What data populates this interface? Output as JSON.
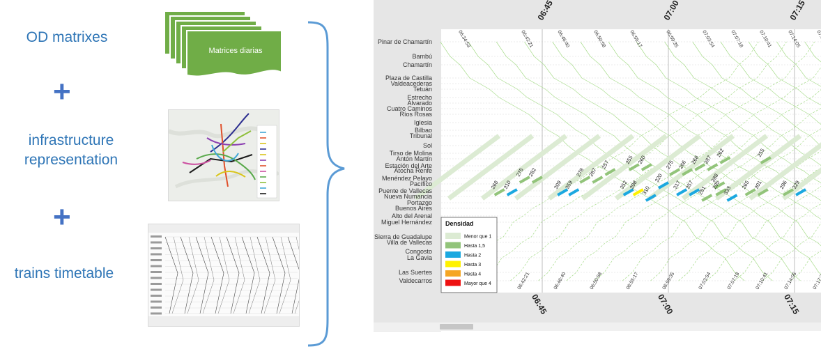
{
  "left": {
    "labels": [
      "OD matrixes",
      "infrastructure\nrepresentation",
      "trains timetable"
    ],
    "plus_symbol": "+",
    "doc_stack_label": "Matrices diarias"
  },
  "colors": {
    "accent_text": "#2E75B6",
    "plus": "#4472C4",
    "doc_green": "#70AD47",
    "brace": "#5B9BD5"
  },
  "chart": {
    "stations": [
      "Pinar de Chamartín",
      "Bambú",
      "Chamartín",
      "Plaza de Castilla",
      "Valdeacederas",
      "Tetuán",
      "Estrecho",
      "Alvarado",
      "Cuatro Caminos",
      "Ríos Rosas",
      "Iglesia",
      "Bilbao",
      "Tribunal",
      "Sol",
      "Tirso de Molina",
      "Antón Martín",
      "Estación del Arte",
      "Atocha Renfe",
      "Menéndez Pelayo",
      "Pacífico",
      "Puente de Vallecas",
      "Nueva Numancia",
      "Portazgo",
      "Buenos Aires",
      "Alto del Arenal",
      "Miguel Hernández",
      "Sierra de Guadalupe",
      "Villa de Vallecas",
      "Congosto",
      "La Gavia",
      "Las Suertes",
      "Valdecarros"
    ],
    "hour_labels": [
      "06:45",
      "07:00",
      "07:15"
    ],
    "time_labels": [
      "06:34:53",
      "06:42:21",
      "06:46:40",
      "06:50:58",
      "06:55:17",
      "06:59:35",
      "07:03:54",
      "07:07:18",
      "07:10:41",
      "07:14:05",
      "07:17:29"
    ],
    "bottom_time_labels": [
      "06:42:21",
      "06:46:40",
      "06:50:58",
      "06:55:17",
      "06:59:35",
      "07:03:54",
      "07:07:18",
      "07:10:41",
      "07:14:05",
      "07:17:29"
    ],
    "legend": {
      "title": "Densidad",
      "items": [
        {
          "label": "Menor que 1",
          "color": "#DCEBD3"
        },
        {
          "label": "Hasta 1,5",
          "color": "#92C47A"
        },
        {
          "label": "Hasta 2",
          "color": "#1BA8E0"
        },
        {
          "label": "Hasta 3",
          "color": "#FFF200"
        },
        {
          "label": "Hasta 4",
          "color": "#F5A623"
        },
        {
          "label": "Mayor que 4",
          "color": "#EE1111"
        }
      ]
    },
    "density_labels": [
      {
        "value": "268",
        "time": "06:39:30",
        "station": "Puente de Vallecas",
        "density": "Hasta 1,5"
      },
      {
        "value": "310",
        "time": "06:41:00",
        "station": "Puente de Vallecas",
        "density": "Hasta 2"
      },
      {
        "value": "275",
        "time": "06:42:30",
        "station": "Menéndez Pelayo",
        "density": "Hasta 1,5"
      },
      {
        "value": "282",
        "time": "06:44:00",
        "station": "Menéndez Pelayo",
        "density": "Hasta 1,5"
      },
      {
        "value": "309",
        "time": "06:47:00",
        "station": "Puente de Vallecas",
        "density": "Hasta 2"
      },
      {
        "value": "359",
        "time": "06:48:20",
        "station": "Puente de Vallecas",
        "density": "Hasta 2"
      },
      {
        "value": "278",
        "time": "06:49:40",
        "station": "Menéndez Pelayo",
        "density": "Hasta 1,5"
      },
      {
        "value": "287",
        "time": "06:51:10",
        "station": "Menéndez Pelayo",
        "density": "Hasta 1,5"
      },
      {
        "value": "257",
        "time": "06:52:40",
        "station": "Atocha Renfe",
        "density": "Hasta 1,5"
      },
      {
        "value": "352",
        "time": "06:54:50",
        "station": "Puente de Vallecas",
        "density": "Hasta 2"
      },
      {
        "value": "398",
        "time": "06:56:00",
        "station": "Puente de Vallecas",
        "density": "Hasta 3"
      },
      {
        "value": "310",
        "time": "06:57:30",
        "station": "Nueva Numancia",
        "density": "Hasta 2"
      },
      {
        "value": "320",
        "time": "06:59:00",
        "station": "Pacífico",
        "density": "Hasta 2"
      },
      {
        "value": "255",
        "time": "06:55:30",
        "station": "Estación del Arte",
        "density": "Hasta 1,5"
      },
      {
        "value": "260",
        "time": "06:57:00",
        "station": "Estación del Arte",
        "density": "Hasta 1,5"
      },
      {
        "value": "275",
        "time": "07:00:20",
        "station": "Atocha Renfe",
        "density": "Hasta 1,5"
      },
      {
        "value": "266",
        "time": "07:01:50",
        "station": "Atocha Renfe",
        "density": "Hasta 1,5"
      },
      {
        "value": "268",
        "time": "07:03:20",
        "station": "Estación del Arte",
        "density": "Hasta 1,5"
      },
      {
        "value": "287",
        "time": "07:04:50",
        "station": "Estación del Arte",
        "density": "Hasta 1,5"
      },
      {
        "value": "262",
        "time": "07:06:20",
        "station": "Antón Martín",
        "density": "Hasta 1,5"
      },
      {
        "value": "317",
        "time": "07:01:10",
        "station": "Puente de Vallecas",
        "density": "Hasta 2"
      },
      {
        "value": "357",
        "time": "07:02:40",
        "station": "Puente de Vallecas",
        "density": "Hasta 2"
      },
      {
        "value": "281",
        "time": "07:04:10",
        "station": "Nueva Numancia",
        "density": "Hasta 1,5"
      },
      {
        "value": "288",
        "time": "07:05:40",
        "station": "Pacífico",
        "density": "Hasta 1,5"
      },
      {
        "value": "295",
        "time": "07:05:50",
        "station": "Puente de Vallecas",
        "density": "Hasta 1,5"
      },
      {
        "value": "333",
        "time": "07:07:10",
        "station": "Nueva Numancia",
        "density": "Hasta 2"
      },
      {
        "value": "265",
        "time": "07:09:20",
        "station": "Puente de Vallecas",
        "density": "Hasta 1,5"
      },
      {
        "value": "301",
        "time": "07:10:50",
        "station": "Puente de Vallecas",
        "density": "Hasta 1,5"
      },
      {
        "value": "255",
        "time": "07:11:10",
        "station": "Antón Martín",
        "density": "Hasta 1,5"
      },
      {
        "value": "296",
        "time": "07:13:50",
        "station": "Puente de Vallecas",
        "density": "Hasta 1,5"
      },
      {
        "value": "329",
        "time": "07:15:20",
        "station": "Puente de Vallecas",
        "density": "Hasta 2"
      }
    ]
  }
}
